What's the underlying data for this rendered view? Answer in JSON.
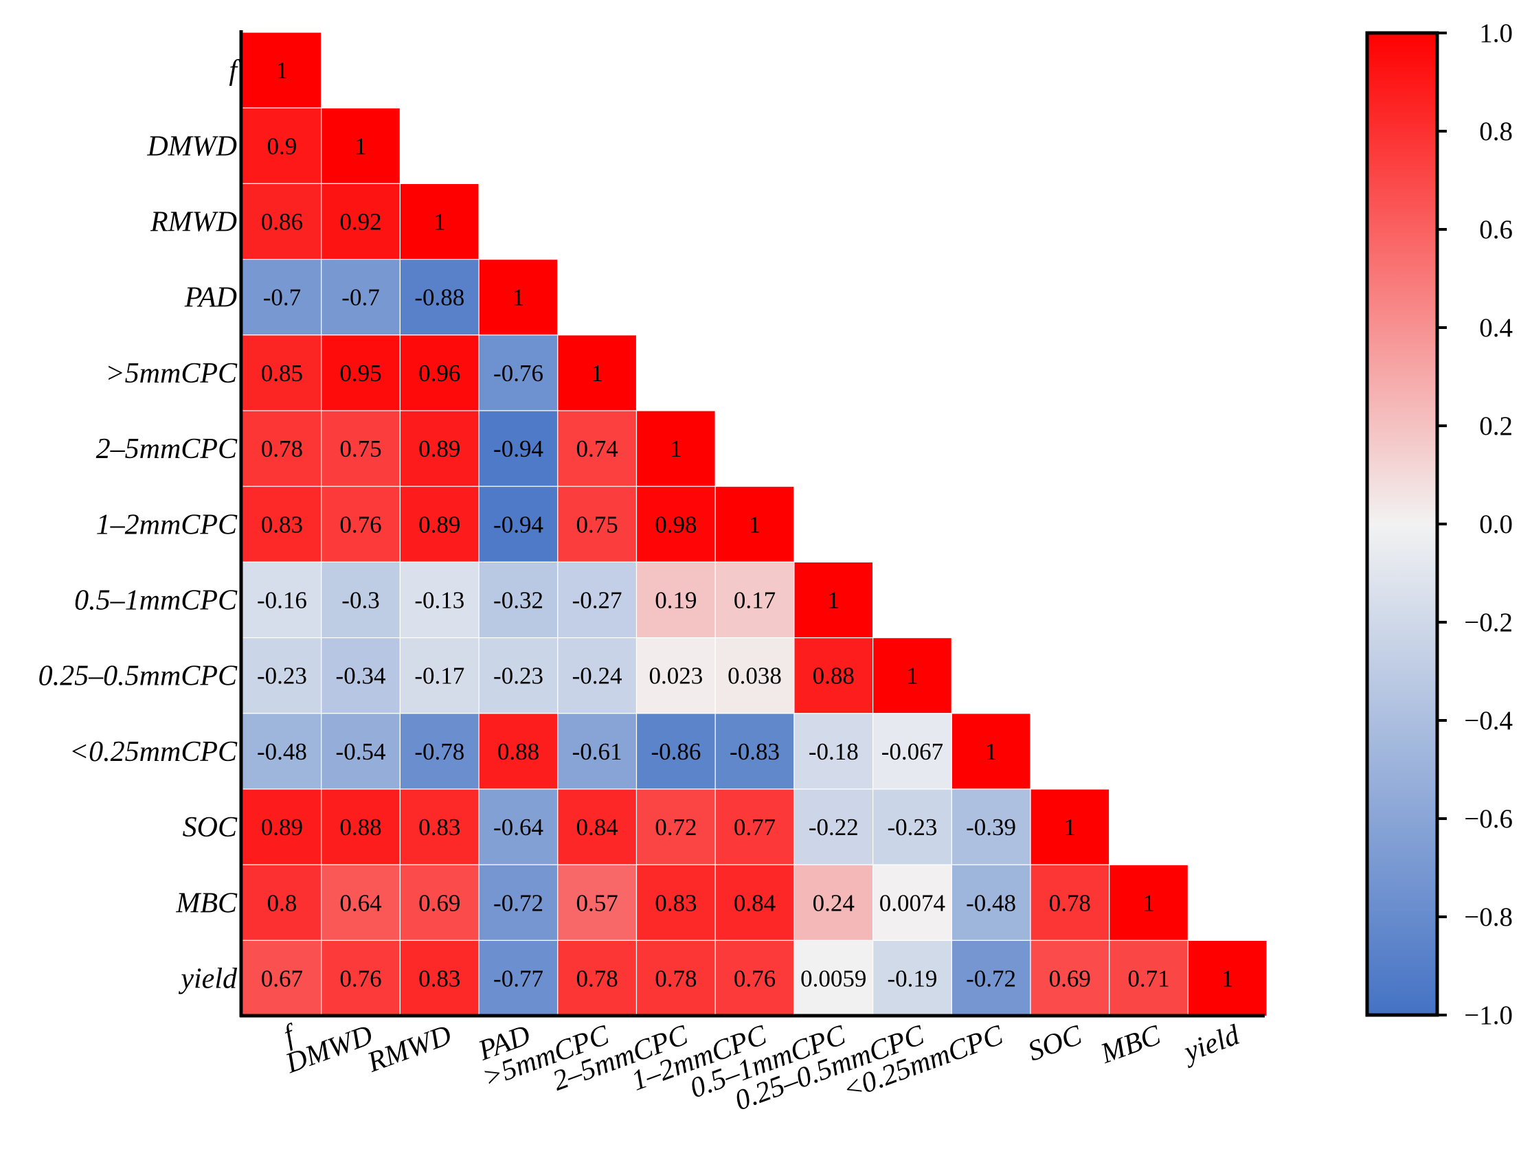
{
  "chart_data": {
    "type": "heatmap",
    "title": "",
    "xlabel": "",
    "ylabel": "",
    "row_labels": [
      "f",
      "DMWD",
      "RMWD",
      "PAD",
      ">5mmCPC",
      "2–5mmCPC",
      "1–2mmCPC",
      "0.5–1mmCPC",
      "0.25–0.5mmCPC",
      "<0.25mmCPC",
      "SOC",
      "MBC",
      "yield"
    ],
    "col_labels": [
      "f",
      "DMWD",
      "RMWD",
      "PAD",
      ">5mmCPC",
      "2–5mmCPC",
      "1–2mmCPC",
      "0.5–1mmCPC",
      "0.25–0.5mmCPC",
      "<0.25mmCPC",
      "SOC",
      "MBC",
      "yield"
    ],
    "values": [
      [
        "1"
      ],
      [
        "0.9",
        "1"
      ],
      [
        "0.86",
        "0.92",
        "1"
      ],
      [
        "-0.7",
        "-0.7",
        "-0.88",
        "1"
      ],
      [
        "0.85",
        "0.95",
        "0.96",
        "-0.76",
        "1"
      ],
      [
        "0.78",
        "0.75",
        "0.89",
        "-0.94",
        "0.74",
        "1"
      ],
      [
        "0.83",
        "0.76",
        "0.89",
        "-0.94",
        "0.75",
        "0.98",
        "1"
      ],
      [
        "-0.16",
        "-0.3",
        "-0.13",
        "-0.32",
        "-0.27",
        "0.19",
        "0.17",
        "1"
      ],
      [
        "-0.23",
        "-0.34",
        "-0.17",
        "-0.23",
        "-0.24",
        "0.023",
        "0.038",
        "0.88",
        "1"
      ],
      [
        "-0.48",
        "-0.54",
        "-0.78",
        "0.88",
        "-0.61",
        "-0.86",
        "-0.83",
        "-0.18",
        "-0.067",
        "1"
      ],
      [
        "0.89",
        "0.88",
        "0.83",
        "-0.64",
        "0.84",
        "0.72",
        "0.77",
        "-0.22",
        "-0.23",
        "-0.39",
        "1"
      ],
      [
        "0.8",
        "0.64",
        "0.69",
        "-0.72",
        "0.57",
        "0.83",
        "0.84",
        "0.24",
        "0.0074",
        "-0.48",
        "0.78",
        "1"
      ],
      [
        "0.67",
        "0.76",
        "0.83",
        "-0.77",
        "0.78",
        "0.78",
        "0.76",
        "0.0059",
        "-0.19",
        "-0.72",
        "0.69",
        "0.71",
        "1"
      ]
    ],
    "colorbar": {
      "range": [
        -1.0,
        1.0
      ],
      "ticks": [
        "1.0",
        "0.8",
        "0.6",
        "0.4",
        "0.2",
        "0.0",
        "−0.2",
        "−0.4",
        "−0.6",
        "−0.8",
        "−1.0"
      ],
      "colors": {
        "low": "#4472c4",
        "mid": "#f2f2f2",
        "high": "#ff0000"
      }
    }
  }
}
